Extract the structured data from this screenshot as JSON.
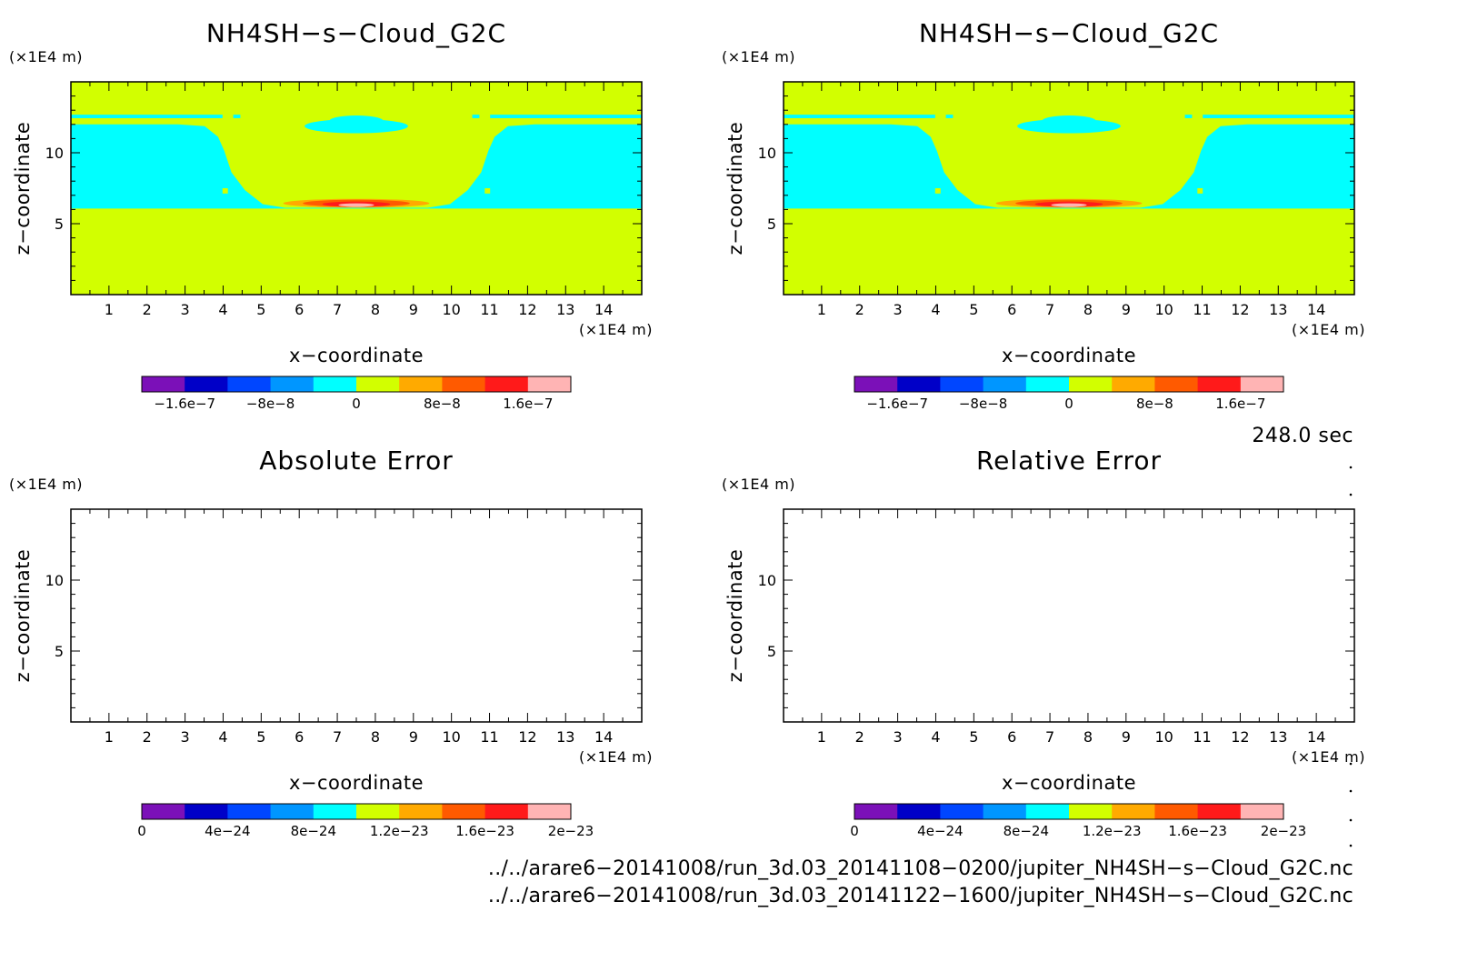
{
  "chart_data": [
    {
      "type": "heatmap",
      "title": "NH4SH−s−Cloud_G2C",
      "xlabel": "x−coordinate",
      "ylabel": "z−coordinate",
      "xunit": "(×1E4 m)",
      "yunit": "(×1E4 m)",
      "xlim": [
        0,
        15
      ],
      "ylim": [
        0,
        15
      ],
      "xticks": [
        "1",
        "2",
        "3",
        "4",
        "5",
        "6",
        "7",
        "8",
        "9",
        "10",
        "11",
        "12",
        "13",
        "14"
      ],
      "yticks": [
        "5",
        "10"
      ],
      "colorbar": {
        "colors": [
          "#7b10b8",
          "#0000c8",
          "#0046ff",
          "#0096ff",
          "#00ffff",
          "#d2ff00",
          "#ffaa00",
          "#ff5a00",
          "#ff1a1a",
          "#ffb4b4"
        ],
        "labels": [
          "−1.6e−7",
          "−8e−8",
          "0",
          "8e−8",
          "1.6e−7"
        ]
      }
    },
    {
      "type": "heatmap",
      "title": "NH4SH−s−Cloud_G2C",
      "xlabel": "x−coordinate",
      "ylabel": "z−coordinate",
      "xunit": "(×1E4 m)",
      "yunit": "(×1E4 m)",
      "xlim": [
        0,
        15
      ],
      "ylim": [
        0,
        15
      ],
      "xticks": [
        "1",
        "2",
        "3",
        "4",
        "5",
        "6",
        "7",
        "8",
        "9",
        "10",
        "11",
        "12",
        "13",
        "14"
      ],
      "yticks": [
        "5",
        "10"
      ],
      "colorbar": {
        "colors": [
          "#7b10b8",
          "#0000c8",
          "#0046ff",
          "#0096ff",
          "#00ffff",
          "#d2ff00",
          "#ffaa00",
          "#ff5a00",
          "#ff1a1a",
          "#ffb4b4"
        ],
        "labels": [
          "−1.6e−7",
          "−8e−8",
          "0",
          "8e−8",
          "1.6e−7"
        ]
      }
    },
    {
      "type": "heatmap",
      "title": "Absolute Error",
      "xlabel": "x−coordinate",
      "ylabel": "z−coordinate",
      "xunit": "(×1E4 m)",
      "yunit": "(×1E4 m)",
      "xlim": [
        0,
        15
      ],
      "ylim": [
        0,
        15
      ],
      "xticks": [
        "1",
        "2",
        "3",
        "4",
        "5",
        "6",
        "7",
        "8",
        "9",
        "10",
        "11",
        "12",
        "13",
        "14"
      ],
      "yticks": [
        "5",
        "10"
      ],
      "colorbar": {
        "colors": [
          "#7b10b8",
          "#0000c8",
          "#0046ff",
          "#0096ff",
          "#00ffff",
          "#d2ff00",
          "#ffaa00",
          "#ff5a00",
          "#ff1a1a",
          "#ffb4b4"
        ],
        "labels": [
          "0",
          "4e−24",
          "8e−24",
          "1.2e−23",
          "1.6e−23",
          "2e−23"
        ]
      }
    },
    {
      "type": "heatmap",
      "title": "Relative Error",
      "xlabel": "x−coordinate",
      "ylabel": "z−coordinate",
      "xunit": "(×1E4 m)",
      "yunit": "(×1E4 m)",
      "xlim": [
        0,
        15
      ],
      "ylim": [
        0,
        15
      ],
      "xticks": [
        "1",
        "2",
        "3",
        "4",
        "5",
        "6",
        "7",
        "8",
        "9",
        "10",
        "11",
        "12",
        "13",
        "14"
      ],
      "yticks": [
        "5",
        "10"
      ],
      "colorbar": {
        "colors": [
          "#7b10b8",
          "#0000c8",
          "#0046ff",
          "#0096ff",
          "#00ffff",
          "#d2ff00",
          "#ffaa00",
          "#ff5a00",
          "#ff1a1a",
          "#ffb4b4"
        ],
        "labels": [
          "0",
          "4e−24",
          "8e−24",
          "1.2e−23",
          "1.6e−23",
          "2e−23"
        ]
      }
    }
  ],
  "time_label": "248.0 sec",
  "file_paths": [
    "../../arare6−20141008/run_3d.03_20141108−0200/jupiter_NH4SH−s−Cloud_G2C.nc",
    "../../arare6−20141008/run_3d.03_20141122−1600/jupiter_NH4SH−s−Cloud_G2C.nc"
  ]
}
